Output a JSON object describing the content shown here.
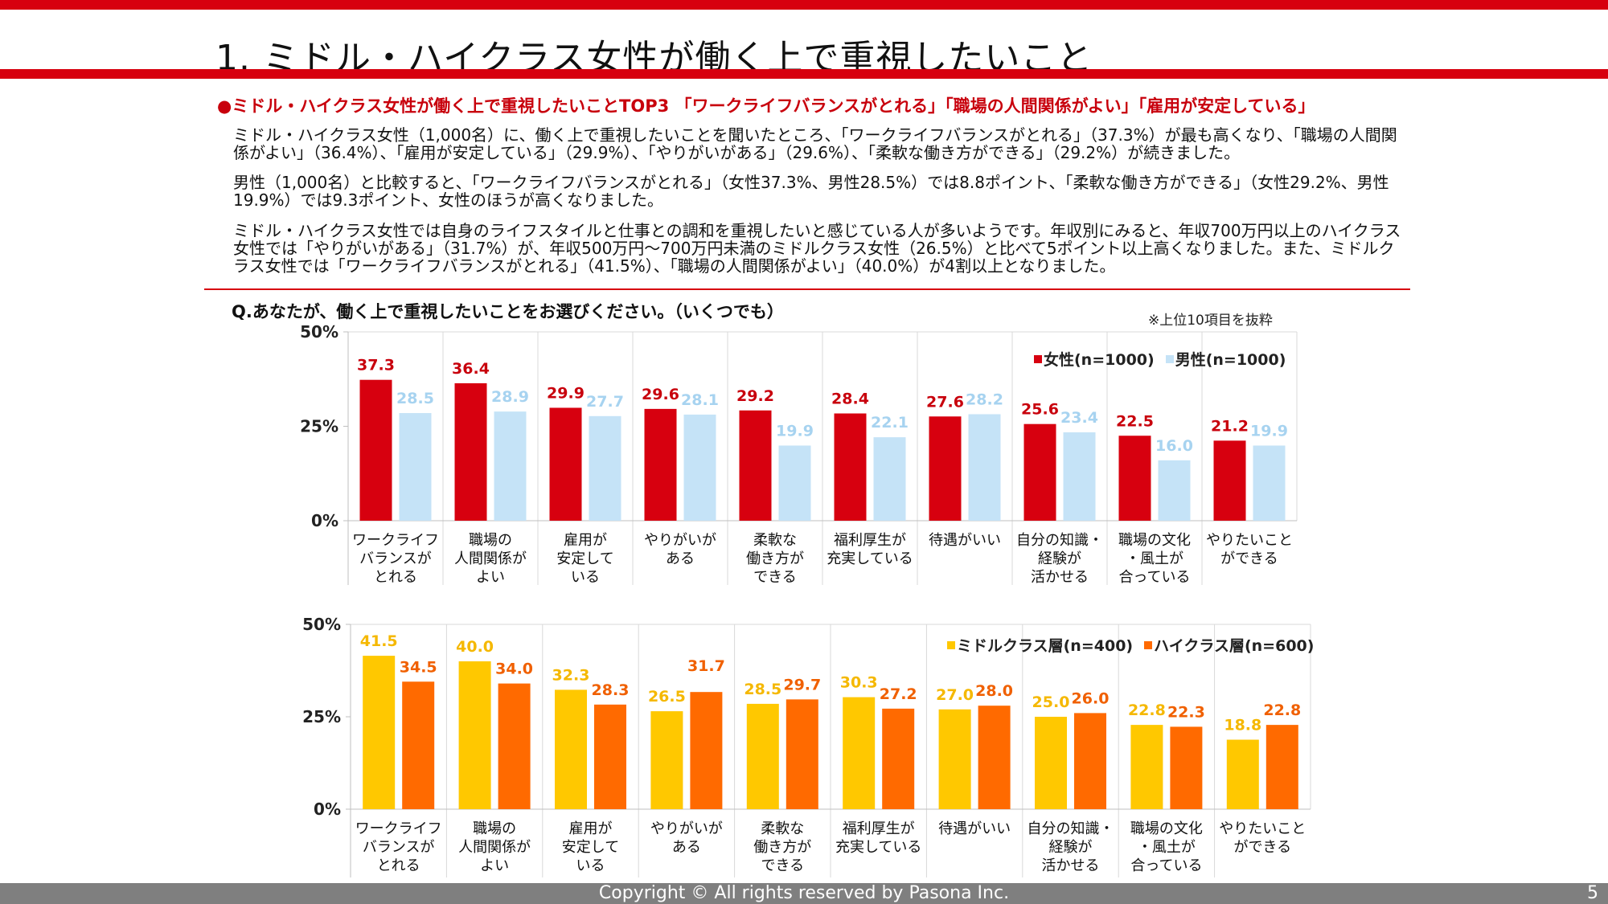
{
  "header": {
    "title": "1. ミドル・ハイクラス女性が働く上で重視したいこと"
  },
  "summary": {
    "headline": "●ミドル・ハイクラス女性が働く上で重視したいことTOP3 「ワークライフバランスがとれる」「職場の人間関係がよい」「雇用が安定している」",
    "paragraph1": "ミドル・ハイクラス女性（1,000名）に、働く上で重視したいことを聞いたところ、「ワークライフバランスがとれる」（37.3%）が最も高くなり、「職場の人間関係がよい」（36.4%）、「雇用が安定している」（29.9%）、「やりがいがある」（29.6%）、「柔軟な働き方ができる」（29.2%）が続きました。",
    "paragraph2": "男性（1,000名）と比較すると、「ワークライフバランスがとれる」（女性37.3%、男性28.5%）では8.8ポイント、「柔軟な働き方ができる」（女性29.2%、男性19.9%）では9.3ポイント、女性のほうが高くなりました。",
    "paragraph3": "ミドル・ハイクラス女性では自身のライフスタイルと仕事との調和を重視したいと感じている人が多いようです。年収別にみると、年収700万円以上のハイクラス女性では「やりがいがある」（31.7%）が、年収500万円～700万円未満のミドルクラス女性（26.5%）と比べて5ポイント以上高くなりました。また、ミドルクラス女性では「ワークライフバランスがとれる」（41.5%）、「職場の人間関係がよい」（40.0%）が4割以上となりました。"
  },
  "question": "Q.あなたが、働く上で重視したいことをお選びください。（いくつでも）",
  "note": "※上位10項目を抜粋",
  "chart_data": [
    {
      "type": "bar",
      "categories": [
        "ワークライフ\nバランスが\nとれる",
        "職場の\n人間関係が\nよい",
        "雇用が\n安定して\nいる",
        "やりがいが\nある",
        "柔軟な\n働き方が\nできる",
        "福利厚生が\n充実している",
        "待遇がいい",
        "自分の知識・\n経験が\n活かせる",
        "職場の文化\n・風土が\n合っている",
        "やりたいこと\nができる"
      ],
      "series": [
        {
          "name": "女性(n=1000)",
          "color": "#d7000f",
          "label_color": "#c8000c",
          "values": [
            37.3,
            36.4,
            29.9,
            29.6,
            29.2,
            28.4,
            27.6,
            25.6,
            22.5,
            21.2
          ]
        },
        {
          "name": "男性(n=1000)",
          "color": "#c5e3f7",
          "label_color": "#a7d3f0",
          "values": [
            28.5,
            28.9,
            27.7,
            28.1,
            19.9,
            22.1,
            28.2,
            23.4,
            16.0,
            19.9
          ]
        }
      ],
      "yticks": [
        "0%",
        "25%",
        "50%"
      ],
      "ylim": [
        0,
        50
      ],
      "grid": false,
      "legend": "top-right"
    },
    {
      "type": "bar",
      "categories": [
        "ワークライフ\nバランスが\nとれる",
        "職場の\n人間関係が\nよい",
        "雇用が\n安定して\nいる",
        "やりがいが\nある",
        "柔軟な\n働き方が\nできる",
        "福利厚生が\n充実している",
        "待遇がいい",
        "自分の知識・\n経験が\n活かせる",
        "職場の文化\n・風土が\n合っている",
        "やりたいこと\nができる"
      ],
      "series": [
        {
          "name": "ミドルクラス層(n=400)",
          "color": "#ffc800",
          "label_color": "#f5b800",
          "values": [
            41.5,
            40.0,
            32.3,
            26.5,
            28.5,
            30.3,
            27.0,
            25.0,
            22.8,
            18.8
          ]
        },
        {
          "name": "ハイクラス層(n=600)",
          "color": "#ff6a00",
          "label_color": "#f06000",
          "values": [
            34.5,
            34.0,
            28.3,
            31.7,
            29.7,
            27.2,
            28.0,
            26.0,
            22.3,
            22.8
          ]
        }
      ],
      "yticks": [
        "0%",
        "25%",
        "50%"
      ],
      "ylim": [
        0,
        50
      ],
      "grid": false,
      "legend": "top-right"
    }
  ],
  "footer": {
    "copyright": "Copyright © All rights reserved by Pasona Inc.",
    "page": "5"
  }
}
